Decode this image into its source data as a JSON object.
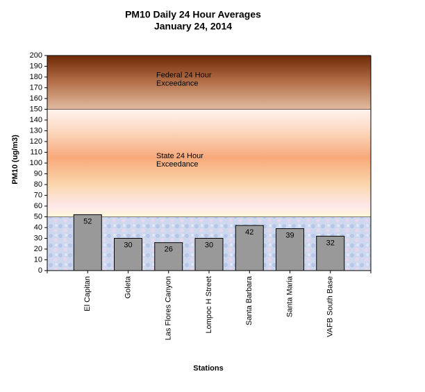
{
  "chart_data": {
    "type": "bar",
    "title": "PM10 Daily 24 Hour Averages",
    "subtitle": "January 24, 2014",
    "x_label": "Stations",
    "y_label": "PM10 (ug/m3)",
    "categories": [
      "El Capitan",
      "Goleta",
      "Las Flores Canyon",
      "Lompoc H Street",
      "Santa Barbara",
      "Santa Maria",
      "VAFB South Base"
    ],
    "values": [
      52,
      30,
      26,
      30,
      42,
      39,
      32
    ],
    "color": "#999999",
    "ylim": [
      0,
      200
    ],
    "yticks": [
      0,
      10,
      20,
      30,
      40,
      50,
      60,
      70,
      80,
      90,
      100,
      110,
      120,
      130,
      140,
      150,
      160,
      170,
      180,
      190,
      200
    ],
    "zones": [
      {
        "from": 0,
        "to": 50
      },
      {
        "from": 50,
        "to": 150,
        "label": [
          "State 24 Hour",
          "Exceedance"
        ]
      },
      {
        "from": 150,
        "to": 200,
        "label": [
          "Federal 24 Hour",
          "Exceedance"
        ]
      }
    ]
  }
}
